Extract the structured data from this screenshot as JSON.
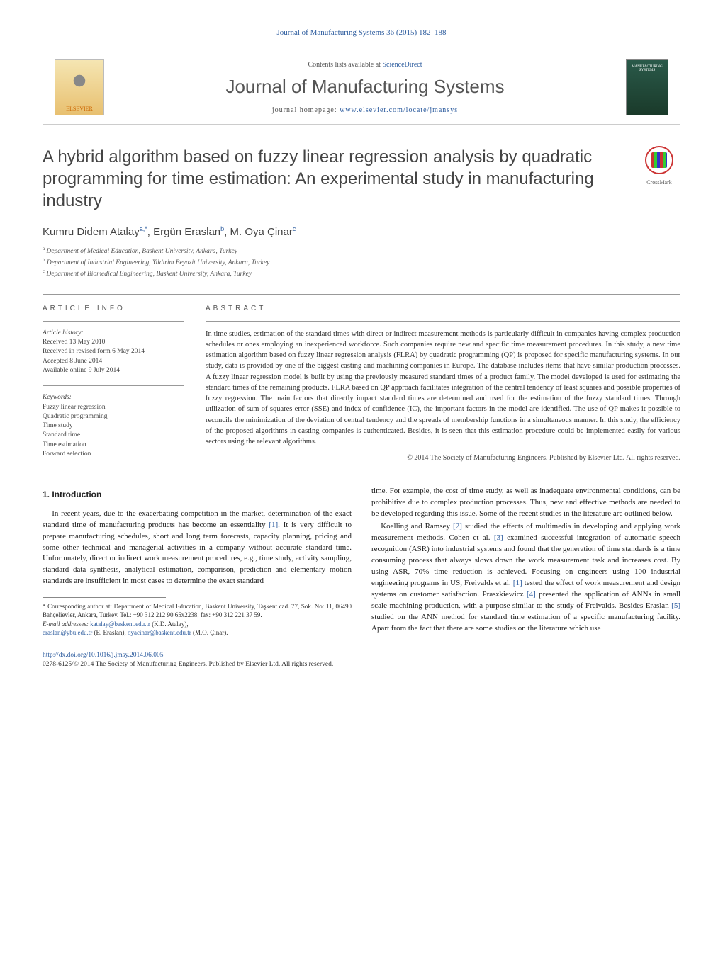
{
  "journal_ref": "Journal of Manufacturing Systems 36 (2015) 182–188",
  "header": {
    "contents_prefix": "Contents lists available at ",
    "contents_link": "ScienceDirect",
    "journal_name": "Journal of Manufacturing Systems",
    "homepage_prefix": "journal homepage: ",
    "homepage_url": "www.elsevier.com/locate/jmansys",
    "elsevier_label": "ELSEVIER",
    "cover_text": "MANUFACTURING SYSTEMS"
  },
  "crossmark_label": "CrossMark",
  "title": "A hybrid algorithm based on fuzzy linear regression analysis by quadratic programming for time estimation: An experimental study in manufacturing industry",
  "authors_line": "Kumru Didem Atalay",
  "author1_sup": "a,*",
  "author2": ", Ergün Eraslan",
  "author2_sup": "b",
  "author3": ", M. Oya Çinar",
  "author3_sup": "c",
  "affiliations": {
    "a": "Department of Medical Education, Baskent University, Ankara, Turkey",
    "b": "Department of Industrial Engineering, Yildirim Beyazit University, Ankara, Turkey",
    "c": "Department of Biomedical Engineering, Baskent University, Ankara, Turkey"
  },
  "info": {
    "label": "ARTICLE INFO",
    "history_hdr": "Article history:",
    "received": "Received 13 May 2010",
    "revised": "Received in revised form 6 May 2014",
    "accepted": "Accepted 8 June 2014",
    "online": "Available online 9 July 2014",
    "keywords_hdr": "Keywords:",
    "keywords": [
      "Fuzzy linear regression",
      "Quadratic programming",
      "Time study",
      "Standard time",
      "Time estimation",
      "Forward selection"
    ]
  },
  "abstract": {
    "label": "ABSTRACT",
    "text": "In time studies, estimation of the standard times with direct or indirect measurement methods is particularly difficult in companies having complex production schedules or ones employing an inexperienced workforce. Such companies require new and specific time measurement procedures. In this study, a new time estimation algorithm based on fuzzy linear regression analysis (FLRA) by quadratic programming (QP) is proposed for specific manufacturing systems. In our study, data is provided by one of the biggest casting and machining companies in Europe. The database includes items that have similar production processes. A fuzzy linear regression model is built by using the previously measured standard times of a product family. The model developed is used for estimating the standard times of the remaining products. FLRA based on QP approach facilitates integration of the central tendency of least squares and possible properties of fuzzy regression. The main factors that directly impact standard times are determined and used for the estimation of the fuzzy standard times. Through utilization of sum of squares error (SSE) and index of confidence (IC), the important factors in the model are identified. The use of QP makes it possible to reconcile the minimization of the deviation of central tendency and the spreads of membership functions in a simultaneous manner. In this study, the efficiency of the proposed algorithms in casting companies is authenticated. Besides, it is seen that this estimation procedure could be implemented easily for various sectors using the relevant algorithms.",
    "copyright": "© 2014 The Society of Manufacturing Engineers. Published by Elsevier Ltd. All rights reserved."
  },
  "body": {
    "section_title": "1. Introduction",
    "p1": "In recent years, due to the exacerbating competition in the market, determination of the exact standard time of manufacturing products has become an essentiality [1]. It is very difficult to prepare manufacturing schedules, short and long term forecasts, capacity planning, pricing and some other technical and managerial activities in a company without accurate standard time. Unfortunately, direct or indirect work measurement procedures, e.g., time study, activity sampling, standard data synthesis, analytical estimation, comparison, prediction and elementary motion standards are insufficient in most cases to determine the exact standard",
    "p2": "time. For example, the cost of time study, as well as inadequate environmental conditions, can be prohibitive due to complex production processes. Thus, new and effective methods are needed to be developed regarding this issue. Some of the recent studies in the literature are outlined below.",
    "p3": "Koelling and Ramsey [2] studied the effects of multimedia in developing and applying work measurement methods. Cohen et al. [3] examined successful integration of automatic speech recognition (ASR) into industrial systems and found that the generation of time standards is a time consuming process that always slows down the work measurement task and increases cost. By using ASR, 70% time reduction is achieved. Focusing on engineers using 100 industrial engineering programs in US, Freivalds et al. [1] tested the effect of work measurement and design systems on customer satisfaction. Praszkiewicz [4] presented the application of ANNs in small scale machining production, with a purpose similar to the study of Freivalds. Besides Eraslan [5] studied on the ANN method for standard time estimation of a specific manufacturing facility. Apart from the fact that there are some studies on the literature which use"
  },
  "footnotes": {
    "corr": "Corresponding author at: Department of Medical Education, Baskent University, Taşkent cad. 77, Sok. No: 11, 06490 Bahçelievler, Ankara, Turkey. Tel.: +90 312 212 90 65x2238; fax: +90 312 221 37 59.",
    "emails_label": "E-mail addresses:",
    "email1": "katalay@baskent.edu.tr",
    "email1_name": " (K.D. Atalay), ",
    "email2": "eraslan@ybu.edu.tr",
    "email2_name": " (E. Eraslan), ",
    "email3": "oyacinar@baskent.edu.tr",
    "email3_name": " (M.O. Çinar)."
  },
  "footer": {
    "doi": "http://dx.doi.org/10.1016/j.jmsy.2014.06.005",
    "issn_line": "0278-6125/© 2014 The Society of Manufacturing Engineers. Published by Elsevier Ltd. All rights reserved."
  },
  "style": {
    "link_color": "#2d5c9e",
    "text_color": "#333333",
    "title_color": "#444444",
    "border_color": "#cccccc"
  }
}
